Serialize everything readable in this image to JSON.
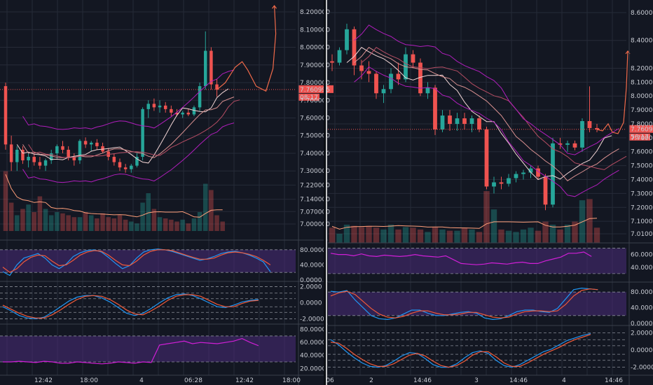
{
  "colors": {
    "background": "#131722",
    "grid": "#262b38",
    "separator": "#3a3f4b",
    "up": "#26a69a",
    "down": "#ef5350",
    "ma_light": "#f3d6d6",
    "ma_mid": "#d99090",
    "ma_dark": "#b64d63",
    "bollinger": "#b01ebc",
    "forecast": "#f06a4a",
    "volume_ma": "#ff9f7a",
    "osc_band": "#4b2b7a",
    "stoch_k": "#2196f3",
    "stoch_d": "#f05a3a",
    "rsi": "#d01fd6",
    "price_label": "#ef5350"
  },
  "chart_data": [
    {
      "type": "candlestick",
      "panel": "left",
      "price_axis": {
        "ticks": [
          "8.200000",
          "8.100000",
          "8.000000",
          "7.900000",
          "7.800000",
          "7.700000",
          "7.600000",
          "7.500000",
          "7.400000",
          "7.300000",
          "7.220000",
          "7.140000",
          "7.070000",
          "7.000000"
        ],
        "last_price": "7.760995",
        "countdown": "08:17"
      },
      "time_axis": {
        "ticks": [
          "12:42",
          "18:00",
          "4",
          "06:28",
          "12:42",
          "18:00"
        ]
      },
      "candles": [
        {
          "o": 7.78,
          "h": 7.8,
          "l": 7.42,
          "c": 7.45
        },
        {
          "o": 7.45,
          "h": 7.5,
          "l": 7.3,
          "c": 7.35
        },
        {
          "o": 7.35,
          "h": 7.44,
          "l": 7.3,
          "c": 7.42
        },
        {
          "o": 7.42,
          "h": 7.44,
          "l": 7.34,
          "c": 7.36
        },
        {
          "o": 7.36,
          "h": 7.4,
          "l": 7.32,
          "c": 7.38
        },
        {
          "o": 7.38,
          "h": 7.4,
          "l": 7.33,
          "c": 7.35
        },
        {
          "o": 7.35,
          "h": 7.38,
          "l": 7.31,
          "c": 7.33
        },
        {
          "o": 7.33,
          "h": 7.37,
          "l": 7.3,
          "c": 7.36
        },
        {
          "o": 7.36,
          "h": 7.42,
          "l": 7.34,
          "c": 7.4
        },
        {
          "o": 7.4,
          "h": 7.45,
          "l": 7.37,
          "c": 7.44
        },
        {
          "o": 7.44,
          "h": 7.47,
          "l": 7.4,
          "c": 7.42
        },
        {
          "o": 7.42,
          "h": 7.44,
          "l": 7.36,
          "c": 7.38
        },
        {
          "o": 7.38,
          "h": 7.4,
          "l": 7.33,
          "c": 7.36
        },
        {
          "o": 7.36,
          "h": 7.48,
          "l": 7.34,
          "c": 7.47
        },
        {
          "o": 7.47,
          "h": 7.49,
          "l": 7.43,
          "c": 7.45
        },
        {
          "o": 7.45,
          "h": 7.47,
          "l": 7.41,
          "c": 7.46
        },
        {
          "o": 7.46,
          "h": 7.48,
          "l": 7.42,
          "c": 7.44
        },
        {
          "o": 7.44,
          "h": 7.46,
          "l": 7.4,
          "c": 7.41
        },
        {
          "o": 7.41,
          "h": 7.43,
          "l": 7.36,
          "c": 7.38
        },
        {
          "o": 7.38,
          "h": 7.4,
          "l": 7.33,
          "c": 7.35
        },
        {
          "o": 7.35,
          "h": 7.37,
          "l": 7.3,
          "c": 7.32
        },
        {
          "o": 7.32,
          "h": 7.34,
          "l": 7.29,
          "c": 7.31
        },
        {
          "o": 7.31,
          "h": 7.34,
          "l": 7.29,
          "c": 7.33
        },
        {
          "o": 7.33,
          "h": 7.4,
          "l": 7.32,
          "c": 7.38
        },
        {
          "o": 7.38,
          "h": 7.66,
          "l": 7.36,
          "c": 7.65
        },
        {
          "o": 7.65,
          "h": 7.7,
          "l": 7.6,
          "c": 7.68
        },
        {
          "o": 7.68,
          "h": 7.71,
          "l": 7.64,
          "c": 7.66
        },
        {
          "o": 7.66,
          "h": 7.7,
          "l": 7.63,
          "c": 7.67
        },
        {
          "o": 7.67,
          "h": 7.69,
          "l": 7.63,
          "c": 7.65
        },
        {
          "o": 7.65,
          "h": 7.67,
          "l": 7.61,
          "c": 7.63
        },
        {
          "o": 7.63,
          "h": 7.65,
          "l": 7.61,
          "c": 7.62
        },
        {
          "o": 7.62,
          "h": 7.64,
          "l": 7.6,
          "c": 7.63
        },
        {
          "o": 7.63,
          "h": 7.65,
          "l": 7.61,
          "c": 7.62
        },
        {
          "o": 7.62,
          "h": 7.67,
          "l": 7.61,
          "c": 7.66
        },
        {
          "o": 7.66,
          "h": 7.8,
          "l": 7.64,
          "c": 7.78
        },
        {
          "o": 7.78,
          "h": 8.09,
          "l": 7.76,
          "c": 7.98
        },
        {
          "o": 7.98,
          "h": 8.0,
          "l": 7.76,
          "c": 7.79
        },
        {
          "o": 7.79,
          "h": 7.82,
          "l": 7.72,
          "c": 7.76
        }
      ],
      "volumes": [
        0.95,
        0.45,
        0.25,
        0.35,
        0.42,
        0.3,
        0.55,
        0.35,
        0.25,
        0.3,
        0.28,
        0.25,
        0.22,
        0.22,
        0.3,
        0.25,
        0.2,
        0.28,
        0.22,
        0.2,
        0.25,
        0.18,
        0.15,
        0.12,
        0.45,
        0.6,
        0.35,
        0.22,
        0.2,
        0.18,
        0.15,
        0.18,
        0.12,
        0.2,
        0.3,
        0.75,
        0.65,
        0.25,
        0.15
      ],
      "stoch": {
        "k": [
          22,
          12,
          40,
          58,
          64,
          70,
          58,
          40,
          30,
          42,
          62,
          72,
          78,
          80,
          74,
          60,
          44,
          30,
          38,
          58,
          74,
          80,
          82,
          80,
          76,
          70,
          64,
          58,
          52,
          56,
          62,
          70,
          74,
          76,
          72,
          66,
          58,
          48,
          22
        ],
        "d": [
          34,
          20,
          30,
          48,
          60,
          66,
          64,
          50,
          38,
          40,
          52,
          66,
          74,
          78,
          76,
          66,
          52,
          40,
          38,
          50,
          66,
          76,
          80,
          80,
          78,
          72,
          66,
          60,
          55,
          55,
          58,
          66,
          72,
          74,
          72,
          68,
          62,
          52,
          40
        ]
      },
      "stoch_axis": [
        "80.0000",
        "40.0000",
        "0.0000"
      ],
      "smi": {
        "a": [
          -0.5,
          -1.0,
          -1.6,
          -1.9,
          -2.0,
          -1.8,
          -1.2,
          -0.5,
          0.2,
          0.7,
          0.9,
          0.9,
          0.6,
          0.1,
          -0.6,
          -1.3,
          -1.6,
          -1.3,
          -0.7,
          0.0,
          0.6,
          1.0,
          1.1,
          0.9,
          0.5,
          0.0,
          -0.5,
          -0.6,
          -0.3,
          0.1,
          0.3,
          0.4
        ],
        "b": [
          -0.3,
          -0.8,
          -1.3,
          -1.7,
          -1.9,
          -1.9,
          -1.5,
          -0.9,
          -0.2,
          0.4,
          0.8,
          0.9,
          0.8,
          0.4,
          -0.2,
          -0.9,
          -1.4,
          -1.5,
          -1.0,
          -0.4,
          0.3,
          0.8,
          1.0,
          1.0,
          0.8,
          0.3,
          -0.2,
          -0.5,
          -0.5,
          -0.1,
          0.2,
          0.3
        ]
      },
      "smi_axis": [
        "2.0000",
        "0.0000",
        "-2.0000"
      ],
      "rsi": [
        30,
        30,
        31,
        30,
        29,
        31,
        30,
        28,
        28,
        30,
        29,
        28,
        27,
        28,
        30,
        29,
        28,
        30,
        29,
        56,
        58,
        60,
        62,
        58,
        60,
        59,
        58,
        60,
        62,
        66,
        60,
        55
      ],
      "rsi_axis": [
        "80.0000",
        "60.0000",
        "40.0000",
        "20.0000"
      ]
    },
    {
      "type": "candlestick",
      "panel": "right",
      "price_axis": {
        "ticks": [
          "8.600000",
          "8.400000",
          "8.200000",
          "8.100000",
          "8.000000",
          "7.900000",
          "7.800000",
          "7.700000",
          "7.600000",
          "7.500000",
          "7.400000",
          "7.300000",
          "7.200000",
          "7.100000",
          "7.010000"
        ],
        "last_price": "7.760995",
        "countdown": "56:17"
      },
      "time_axis": {
        "ticks": [
          "06",
          "2",
          "14:46",
          "3",
          "14:46",
          "4",
          "14:46"
        ]
      },
      "candles": [
        {
          "o": 8.25,
          "h": 8.3,
          "l": 8.18,
          "c": 8.24
        },
        {
          "o": 8.24,
          "h": 8.35,
          "l": 8.22,
          "c": 8.33
        },
        {
          "o": 8.33,
          "h": 8.52,
          "l": 8.3,
          "c": 8.48
        },
        {
          "o": 8.48,
          "h": 8.5,
          "l": 8.15,
          "c": 8.22
        },
        {
          "o": 8.22,
          "h": 8.26,
          "l": 8.12,
          "c": 8.18
        },
        {
          "o": 8.18,
          "h": 8.25,
          "l": 8.1,
          "c": 8.16
        },
        {
          "o": 8.16,
          "h": 8.18,
          "l": 7.98,
          "c": 8.02
        },
        {
          "o": 8.02,
          "h": 8.08,
          "l": 7.95,
          "c": 8.05
        },
        {
          "o": 8.05,
          "h": 8.2,
          "l": 8.02,
          "c": 8.16
        },
        {
          "o": 8.16,
          "h": 8.24,
          "l": 8.08,
          "c": 8.12
        },
        {
          "o": 8.12,
          "h": 8.35,
          "l": 8.1,
          "c": 8.3
        },
        {
          "o": 8.3,
          "h": 8.33,
          "l": 8.2,
          "c": 8.24
        },
        {
          "o": 8.24,
          "h": 8.27,
          "l": 8.0,
          "c": 8.02
        },
        {
          "o": 8.02,
          "h": 8.1,
          "l": 7.98,
          "c": 8.06
        },
        {
          "o": 8.06,
          "h": 8.08,
          "l": 7.72,
          "c": 7.76
        },
        {
          "o": 7.76,
          "h": 7.9,
          "l": 7.74,
          "c": 7.86
        },
        {
          "o": 7.86,
          "h": 7.9,
          "l": 7.75,
          "c": 7.8
        },
        {
          "o": 7.8,
          "h": 7.88,
          "l": 7.75,
          "c": 7.84
        },
        {
          "o": 7.84,
          "h": 7.88,
          "l": 7.76,
          "c": 7.8
        },
        {
          "o": 7.8,
          "h": 7.86,
          "l": 7.74,
          "c": 7.84
        },
        {
          "o": 7.84,
          "h": 7.86,
          "l": 7.74,
          "c": 7.76
        },
        {
          "o": 7.76,
          "h": 7.78,
          "l": 7.33,
          "c": 7.35
        },
        {
          "o": 7.35,
          "h": 7.42,
          "l": 7.3,
          "c": 7.38
        },
        {
          "o": 7.38,
          "h": 7.42,
          "l": 7.33,
          "c": 7.37
        },
        {
          "o": 7.37,
          "h": 7.44,
          "l": 7.35,
          "c": 7.41
        },
        {
          "o": 7.41,
          "h": 7.46,
          "l": 7.38,
          "c": 7.44
        },
        {
          "o": 7.44,
          "h": 7.47,
          "l": 7.4,
          "c": 7.45
        },
        {
          "o": 7.45,
          "h": 7.5,
          "l": 7.41,
          "c": 7.48
        },
        {
          "o": 7.48,
          "h": 7.5,
          "l": 7.4,
          "c": 7.42
        },
        {
          "o": 7.42,
          "h": 7.44,
          "l": 7.18,
          "c": 7.22
        },
        {
          "o": 7.22,
          "h": 7.7,
          "l": 7.2,
          "c": 7.66
        },
        {
          "o": 7.66,
          "h": 7.7,
          "l": 7.62,
          "c": 7.65
        },
        {
          "o": 7.65,
          "h": 7.68,
          "l": 7.6,
          "c": 7.66
        },
        {
          "o": 7.66,
          "h": 7.68,
          "l": 7.61,
          "c": 7.63
        },
        {
          "o": 7.63,
          "h": 7.84,
          "l": 7.6,
          "c": 7.82
        },
        {
          "o": 7.82,
          "h": 8.07,
          "l": 7.74,
          "c": 7.77
        },
        {
          "o": 7.77,
          "h": 7.8,
          "l": 7.74,
          "c": 7.76
        }
      ],
      "volumes": [
        0.25,
        0.15,
        0.3,
        0.28,
        0.26,
        0.28,
        0.25,
        0.22,
        0.3,
        0.22,
        0.26,
        0.25,
        0.22,
        0.18,
        0.26,
        0.22,
        0.2,
        0.2,
        0.25,
        0.22,
        0.18,
        0.85,
        0.55,
        0.22,
        0.2,
        0.18,
        0.22,
        0.25,
        0.2,
        0.35,
        0.3,
        0.22,
        0.3,
        0.35,
        0.7,
        0.72,
        0.25
      ],
      "rsi": [
        62,
        60,
        60,
        58,
        61,
        58,
        57,
        59,
        58,
        57,
        58,
        60,
        58,
        57,
        56,
        58,
        52,
        46,
        45,
        44,
        45,
        47,
        46,
        45,
        47,
        48,
        46,
        46,
        50,
        53,
        56,
        62,
        62,
        64,
        57
      ],
      "rsi_axis": [
        "60.0000",
        "40.0000"
      ],
      "stoch": {
        "k": [
          82,
          80,
          84,
          60,
          40,
          20,
          12,
          10,
          14,
          24,
          34,
          34,
          26,
          20,
          20,
          24,
          28,
          30,
          26,
          14,
          10,
          12,
          20,
          30,
          34,
          34,
          30,
          28,
          38,
          62,
          86,
          90,
          88,
          86
        ],
        "d": [
          70,
          78,
          82,
          74,
          56,
          38,
          24,
          16,
          14,
          18,
          26,
          32,
          32,
          26,
          22,
          22,
          24,
          28,
          28,
          22,
          16,
          14,
          16,
          24,
          30,
          32,
          32,
          30,
          32,
          48,
          70,
          84,
          88,
          86
        ]
      },
      "stoch_axis": [
        "80.0000",
        "40.0000",
        "0.0000"
      ],
      "smi": {
        "a": [
          1.2,
          0.6,
          -0.2,
          -0.9,
          -1.5,
          -1.9,
          -2.0,
          -1.8,
          -1.3,
          -0.7,
          -0.3,
          -0.4,
          -1.0,
          -1.7,
          -2.0,
          -2.0,
          -1.6,
          -0.9,
          -0.3,
          -0.1,
          -0.4,
          -1.2,
          -1.8,
          -2.0,
          -1.7,
          -1.2,
          -0.7,
          -0.2,
          0.1,
          0.6,
          1.1,
          1.4,
          1.7,
          1.9
        ],
        "b": [
          0.9,
          0.8,
          0.2,
          -0.5,
          -1.1,
          -1.6,
          -1.9,
          -1.9,
          -1.6,
          -1.1,
          -0.6,
          -0.4,
          -0.7,
          -1.3,
          -1.8,
          -2.0,
          -1.8,
          -1.3,
          -0.6,
          -0.2,
          -0.2,
          -0.8,
          -1.5,
          -1.9,
          -1.9,
          -1.5,
          -1.0,
          -0.5,
          -0.1,
          0.3,
          0.8,
          1.2,
          1.5,
          1.8
        ]
      },
      "smi_axis": [
        "2.0000",
        "0.0000",
        "-2.0000"
      ]
    }
  ]
}
